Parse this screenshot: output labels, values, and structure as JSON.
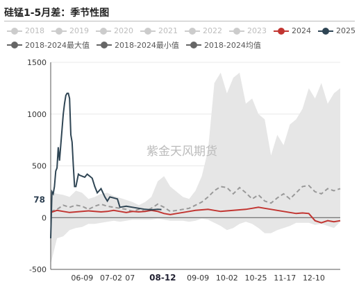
{
  "header": {
    "title": "硅锰1-5月差：季节性图"
  },
  "legend": {
    "row1": [
      {
        "label": "2018",
        "color": "#cccccc",
        "active": false
      },
      {
        "label": "2019",
        "color": "#cccccc",
        "active": false
      },
      {
        "label": "2020",
        "color": "#cccccc",
        "active": false
      },
      {
        "label": "2021",
        "color": "#cccccc",
        "active": false
      },
      {
        "label": "2022",
        "color": "#cccccc",
        "active": false
      },
      {
        "label": "2023",
        "color": "#cccccc",
        "active": false
      },
      {
        "label": "2024",
        "color": "#c23531",
        "active": true
      },
      {
        "label": "2025",
        "color": "#2f4554",
        "active": true
      }
    ],
    "row2": [
      {
        "label": "2018-2024最大值",
        "color": "#666666",
        "active": true
      },
      {
        "label": "2018-2024最小值",
        "color": "#666666",
        "active": true
      },
      {
        "label": "2018-2024均值",
        "color": "#666666",
        "active": true
      }
    ]
  },
  "watermark": "紫金天风期货",
  "chart_data": {
    "type": "line",
    "title": "硅锰1-5月差：季节性图",
    "ylim": [
      -500,
      1500
    ],
    "yticks": [
      -500,
      0,
      500,
      1000,
      1500
    ],
    "x_range_days": [
      135,
      365
    ],
    "xticks": [
      {
        "label": "06-09",
        "day": 160
      },
      {
        "label": "07-02",
        "day": 183
      },
      {
        "label": "07",
        "day": 198
      },
      {
        "label": "08-12",
        "day": 224,
        "highlight": true
      },
      {
        "label": "09-09",
        "day": 252
      },
      {
        "label": "10-02",
        "day": 275
      },
      {
        "label": "10-25",
        "day": 298
      },
      {
        "label": "11-17",
        "day": 321
      },
      {
        "label": "12-10",
        "day": 344
      }
    ],
    "current_value_label": "78",
    "grid": true,
    "colors": {
      "band": "#e6e6e6",
      "y2024": "#c23531",
      "y2025": "#2f4554",
      "mean": "#999999"
    },
    "series": [
      {
        "name": "2018-2024最大值",
        "x": [
          135,
          140,
          145,
          150,
          155,
          160,
          165,
          170,
          175,
          180,
          185,
          190,
          195,
          200,
          205,
          210,
          215,
          220,
          225,
          230,
          235,
          240,
          245,
          250,
          255,
          260,
          265,
          270,
          275,
          280,
          285,
          290,
          295,
          300,
          305,
          310,
          315,
          320,
          325,
          330,
          335,
          340,
          345,
          350,
          355,
          360,
          365
        ],
        "values": [
          250,
          230,
          220,
          200,
          260,
          240,
          180,
          200,
          230,
          240,
          210,
          190,
          170,
          150,
          120,
          150,
          200,
          350,
          400,
          300,
          250,
          200,
          180,
          260,
          400,
          650,
          1300,
          1400,
          1200,
          1350,
          1400,
          1100,
          1150,
          1000,
          950,
          600,
          800,
          700,
          900,
          950,
          1050,
          1250,
          1150,
          1300,
          1100,
          1200,
          1250
        ]
      },
      {
        "name": "2018-2024最小值",
        "x": [
          135,
          140,
          145,
          150,
          155,
          160,
          165,
          170,
          175,
          180,
          185,
          190,
          195,
          200,
          205,
          210,
          215,
          220,
          225,
          230,
          235,
          240,
          245,
          250,
          255,
          260,
          265,
          270,
          275,
          280,
          285,
          290,
          295,
          300,
          305,
          310,
          315,
          320,
          325,
          330,
          335,
          340,
          345,
          350,
          355,
          360,
          365
        ],
        "values": [
          -450,
          -200,
          -180,
          -120,
          -100,
          -90,
          -60,
          -60,
          -50,
          -40,
          -30,
          -40,
          -30,
          -20,
          -20,
          -20,
          -20,
          -10,
          -20,
          -30,
          -30,
          -30,
          -40,
          -30,
          -10,
          -20,
          -50,
          -80,
          -120,
          -100,
          -60,
          -40,
          -60,
          -100,
          -150,
          -150,
          -120,
          -100,
          -80,
          -50,
          -50,
          -50,
          -70,
          -60,
          -80,
          -100,
          -40
        ]
      },
      {
        "name": "2018-2024均值",
        "x": [
          135,
          140,
          145,
          150,
          155,
          160,
          165,
          170,
          175,
          180,
          185,
          190,
          195,
          200,
          205,
          210,
          215,
          220,
          225,
          230,
          235,
          240,
          245,
          250,
          255,
          260,
          265,
          270,
          275,
          280,
          285,
          290,
          295,
          300,
          305,
          310,
          315,
          320,
          325,
          330,
          335,
          340,
          345,
          350,
          355,
          360,
          365
        ],
        "values": [
          60,
          80,
          120,
          100,
          120,
          110,
          80,
          110,
          130,
          110,
          100,
          90,
          80,
          60,
          80,
          60,
          90,
          130,
          100,
          60,
          70,
          80,
          90,
          120,
          150,
          200,
          260,
          300,
          290,
          230,
          290,
          240,
          180,
          220,
          160,
          140,
          190,
          230,
          180,
          240,
          300,
          310,
          250,
          230,
          280,
          260,
          280
        ]
      },
      {
        "name": "2024",
        "x": [
          135,
          140,
          145,
          150,
          155,
          160,
          165,
          170,
          175,
          180,
          185,
          190,
          195,
          200,
          205,
          210,
          215,
          220,
          225,
          230,
          235,
          240,
          245,
          250,
          255,
          260,
          265,
          270,
          275,
          280,
          285,
          290,
          295,
          300,
          305,
          310,
          315,
          320,
          325,
          330,
          335,
          340,
          345,
          350,
          355,
          360,
          365
        ],
        "values": [
          50,
          70,
          60,
          50,
          55,
          60,
          65,
          60,
          55,
          60,
          70,
          60,
          50,
          60,
          55,
          60,
          70,
          60,
          40,
          30,
          40,
          50,
          60,
          70,
          75,
          80,
          70,
          60,
          65,
          70,
          75,
          80,
          90,
          100,
          90,
          80,
          70,
          60,
          50,
          40,
          45,
          40,
          -30,
          -50,
          -30,
          -40,
          -30
        ]
      },
      {
        "name": "2025",
        "x": [
          135,
          136,
          137,
          138,
          139,
          140,
          141,
          142,
          143,
          144,
          145,
          146,
          147,
          148,
          149,
          150,
          151,
          152,
          153,
          154,
          155,
          157,
          158,
          160,
          162,
          164,
          166,
          168,
          170,
          172,
          175,
          178,
          180,
          182,
          185,
          188,
          190,
          195,
          200,
          205,
          210,
          215,
          220,
          223
        ],
        "values": [
          -200,
          250,
          230,
          300,
          450,
          480,
          680,
          550,
          700,
          850,
          1000,
          1100,
          1180,
          1200,
          1200,
          1150,
          800,
          730,
          500,
          300,
          300,
          420,
          410,
          400,
          390,
          420,
          400,
          380,
          300,
          240,
          280,
          200,
          160,
          200,
          190,
          180,
          100,
          110,
          100,
          90,
          80,
          75,
          80,
          78
        ]
      }
    ]
  }
}
